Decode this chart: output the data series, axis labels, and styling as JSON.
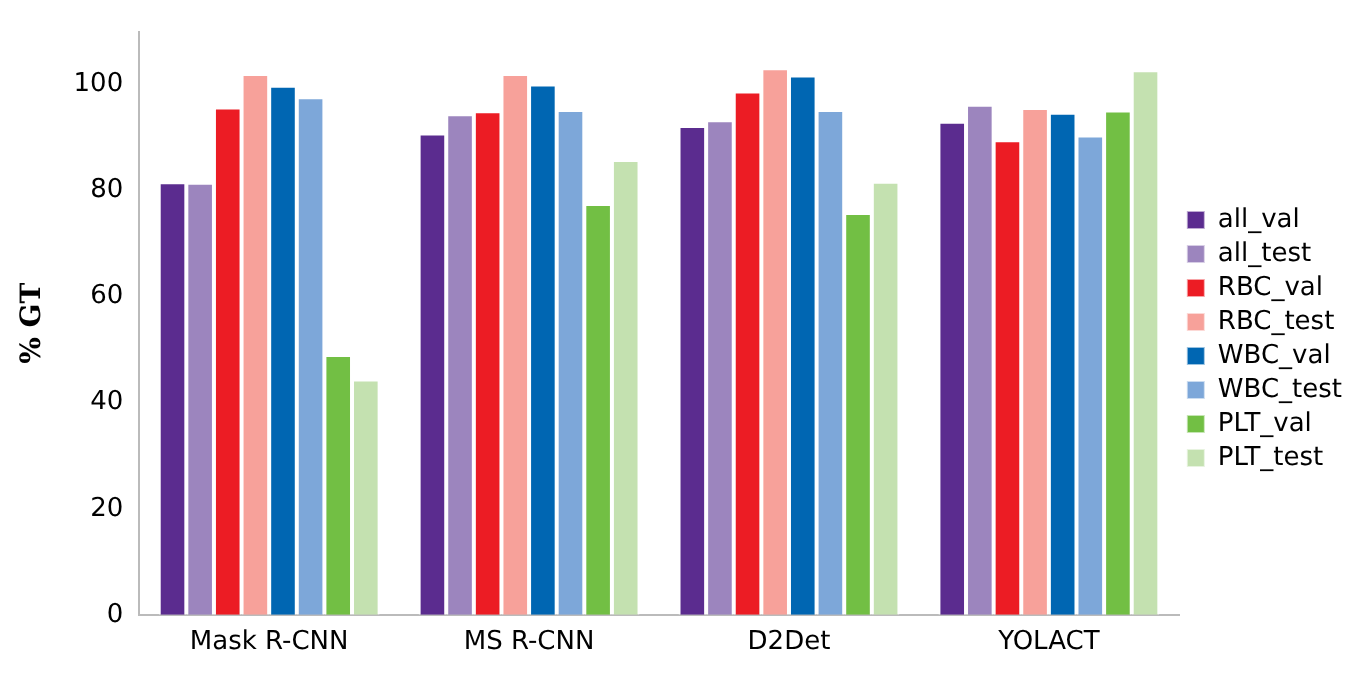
{
  "chart_data": {
    "type": "bar",
    "ylabel": "% GT",
    "categories": [
      "Mask R-CNN",
      "MS R-CNN",
      "D2Det",
      "YOLACT"
    ],
    "series": [
      {
        "name": "all_val",
        "color": "#5b2c8f",
        "values": [
          81.6,
          90.8,
          92.2,
          93
        ]
      },
      {
        "name": "all_test",
        "color": "#9c85be",
        "values": [
          81.5,
          94.4,
          93.3,
          96.2
        ]
      },
      {
        "name": "RBC_val",
        "color": "#ec1c24",
        "values": [
          95.7,
          95,
          98.7,
          89.5
        ]
      },
      {
        "name": "RBC_test",
        "color": "#f7a19a",
        "values": [
          102,
          102,
          103.1,
          95.6
        ]
      },
      {
        "name": "WBC_val",
        "color": "#0066b2",
        "values": [
          99.8,
          100,
          101.7,
          94.7
        ]
      },
      {
        "name": "WBC_test",
        "color": "#7da7d9",
        "values": [
          97.6,
          95.2,
          95.2,
          90.4
        ]
      },
      {
        "name": "PLT_val",
        "color": "#72bf44",
        "values": [
          49,
          77.5,
          75.8,
          95.1
        ]
      },
      {
        "name": "PLT_test",
        "color": "#c4e1b0",
        "values": [
          44.4,
          85.8,
          81.7,
          102.7
        ]
      }
    ],
    "ylim": [
      0,
      110
    ],
    "yticks": [
      0,
      20,
      40,
      60,
      80,
      100
    ],
    "grid": false,
    "legend": "right"
  }
}
